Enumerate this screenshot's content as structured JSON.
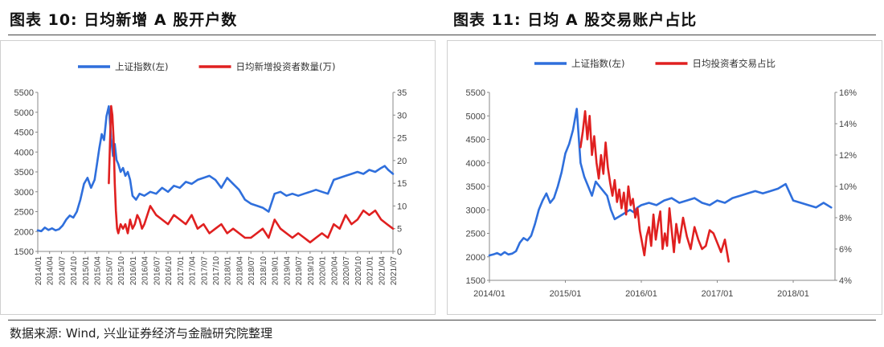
{
  "figures": {
    "left_title": "图表 10:  日均新增 A 股开户数",
    "right_title": "图表 11:  日均 A 股交易账户占比"
  },
  "source": "数据来源:  Wind, 兴业证券经济与金融研究院整理",
  "chart_data": [
    {
      "type": "line",
      "title": "图表 10:  日均新增 A 股开户数",
      "legend_position": "top",
      "grid": false,
      "x_ticks": [
        "2014/01",
        "2014/04",
        "2014/07",
        "2014/10",
        "2015/01",
        "2015/04",
        "2015/07",
        "2015/10",
        "2016/01",
        "2016/04",
        "2016/07",
        "2016/10",
        "2017/01",
        "2017/04",
        "2017/07",
        "2017/10",
        "2018/01",
        "2018/04",
        "2018/07",
        "2018/10",
        "2019/01",
        "2019/04",
        "2019/07",
        "2019/10",
        "2020/01",
        "2020/04",
        "2020/07",
        "2020/10",
        "2021/01",
        "2021/04",
        "2021/07"
      ],
      "ylim_left": [
        1500,
        5500
      ],
      "ylim_right": [
        0,
        35
      ],
      "y_ticks_left": [
        "1500",
        "2000",
        "2500",
        "3000",
        "3500",
        "4000",
        "4500",
        "5000",
        "5500"
      ],
      "y_ticks_right": [
        "0",
        "5",
        "10",
        "15",
        "20",
        "25",
        "30",
        "35"
      ],
      "series": [
        {
          "name": "上证指数(左)",
          "axis": "left",
          "color": "#2f6fdc",
          "x": [
            0,
            0.3,
            0.6,
            0.9,
            1.2,
            1.5,
            1.8,
            2.1,
            2.4,
            2.7,
            3.0,
            3.3,
            3.6,
            3.9,
            4.2,
            4.5,
            4.8,
            5.0,
            5.2,
            5.4,
            5.6,
            5.8,
            6.0,
            6.2,
            6.35,
            6.5,
            6.65,
            6.8,
            7.0,
            7.2,
            7.4,
            7.6,
            7.8,
            8.0,
            8.3,
            8.6,
            9.0,
            9.5,
            10,
            10.5,
            11,
            11.5,
            12,
            12.5,
            13,
            13.5,
            14,
            14.5,
            15,
            15.5,
            16,
            16.5,
            17,
            17.5,
            18,
            18.5,
            19,
            19.5,
            20,
            20.5,
            21,
            21.5,
            22,
            22.5,
            23,
            23.5,
            24,
            24.5,
            25,
            25.5,
            26,
            26.5,
            27,
            27.5,
            28,
            28.5,
            29,
            29.3,
            29.6,
            29.8,
            30
          ],
          "y": [
            2030,
            2010,
            2100,
            2040,
            2080,
            2030,
            2060,
            2150,
            2300,
            2400,
            2350,
            2500,
            2800,
            3200,
            3350,
            3100,
            3300,
            3700,
            4100,
            4450,
            4300,
            4900,
            5150,
            4350,
            3900,
            4200,
            3800,
            3700,
            3500,
            3600,
            3400,
            3500,
            3300,
            2900,
            2800,
            2950,
            2900,
            3000,
            2950,
            3100,
            3000,
            3150,
            3100,
            3250,
            3200,
            3300,
            3350,
            3400,
            3300,
            3100,
            3350,
            3200,
            3050,
            2800,
            2700,
            2650,
            2600,
            2500,
            2950,
            3000,
            2900,
            2950,
            2900,
            2950,
            3000,
            3050,
            3000,
            2950,
            3300,
            3350,
            3400,
            3450,
            3500,
            3450,
            3550,
            3500,
            3600,
            3650,
            3550,
            3500,
            3450
          ]
        },
        {
          "name": "日均新增投资者数量(万)",
          "axis": "right",
          "color": "#e02020",
          "x": [
            6.0,
            6.1,
            6.2,
            6.3,
            6.4,
            6.5,
            6.6,
            6.7,
            6.8,
            7.0,
            7.2,
            7.4,
            7.6,
            7.8,
            8.0,
            8.2,
            8.4,
            8.6,
            8.8,
            9.0,
            9.5,
            10,
            10.5,
            11,
            11.5,
            12,
            12.5,
            13,
            13.5,
            14,
            14.5,
            15,
            15.5,
            16,
            16.5,
            17,
            17.5,
            18,
            18.5,
            19,
            19.5,
            20,
            20.5,
            21,
            21.5,
            22,
            22.5,
            23,
            23.5,
            24,
            24.5,
            25,
            25.5,
            26,
            26.5,
            27,
            27.5,
            28,
            28.5,
            29,
            29.5,
            30
          ],
          "y": [
            15,
            24,
            32,
            30,
            25,
            15,
            9,
            5,
            4,
            6,
            5,
            6,
            4,
            7,
            5,
            6,
            8,
            7,
            5,
            6,
            10,
            8,
            7,
            6,
            8,
            7,
            6,
            8,
            5,
            6,
            4,
            5,
            6,
            4,
            5,
            4,
            3,
            3,
            4,
            5,
            3,
            7,
            5,
            4,
            3,
            4,
            3,
            2,
            3,
            4,
            3,
            6,
            5,
            8,
            6,
            7,
            9,
            8,
            9,
            7,
            6,
            5
          ]
        }
      ]
    },
    {
      "type": "line",
      "title": "图表 11:  日均 A 股交易账户占比",
      "legend_position": "top",
      "grid": false,
      "x_ticks": [
        "2014/01",
        "2015/01",
        "2016/01",
        "2017/01",
        "2018/01"
      ],
      "ylim_left": [
        1500,
        5500
      ],
      "ylim_right": [
        4,
        16
      ],
      "y_ticks_left": [
        "1500",
        "2000",
        "2500",
        "3000",
        "3500",
        "4000",
        "4500",
        "5000",
        "5500"
      ],
      "y_ticks_right": [
        "4%",
        "6%",
        "8%",
        "10%",
        "12%",
        "14%",
        "16%"
      ],
      "series": [
        {
          "name": "上证指数(左)",
          "axis": "left",
          "color": "#2f6fdc",
          "x": [
            0,
            0.05,
            0.1,
            0.15,
            0.2,
            0.25,
            0.3,
            0.35,
            0.4,
            0.45,
            0.5,
            0.55,
            0.6,
            0.65,
            0.7,
            0.75,
            0.8,
            0.85,
            0.9,
            0.95,
            1.0,
            1.05,
            1.1,
            1.15,
            1.2,
            1.25,
            1.3,
            1.35,
            1.4,
            1.45,
            1.5,
            1.55,
            1.6,
            1.65,
            1.7,
            1.75,
            1.8,
            1.85,
            1.9,
            1.95,
            2.0,
            2.1,
            2.2,
            2.3,
            2.4,
            2.5,
            2.6,
            2.7,
            2.8,
            2.9,
            3.0,
            3.1,
            3.2,
            3.3,
            3.4,
            3.5,
            3.6,
            3.7,
            3.8,
            3.9,
            4.0,
            4.1,
            4.2,
            4.3,
            4.4,
            4.5
          ],
          "y": [
            2030,
            2050,
            2080,
            2040,
            2100,
            2050,
            2070,
            2120,
            2300,
            2400,
            2350,
            2450,
            2700,
            3000,
            3200,
            3350,
            3150,
            3250,
            3500,
            3800,
            4200,
            4400,
            4700,
            5150,
            4000,
            3700,
            3500,
            3300,
            3600,
            3500,
            3400,
            3300,
            3000,
            2800,
            2850,
            2900,
            2950,
            3000,
            2950,
            3050,
            3100,
            3150,
            3100,
            3200,
            3250,
            3150,
            3200,
            3250,
            3150,
            3100,
            3200,
            3150,
            3250,
            3300,
            3350,
            3400,
            3350,
            3400,
            3450,
            3550,
            3200,
            3150,
            3100,
            3050,
            3150,
            3050
          ]
        },
        {
          "name": "日均投资者交易占比",
          "axis": "right",
          "color": "#e02020",
          "x": [
            1.2,
            1.23,
            1.26,
            1.29,
            1.32,
            1.35,
            1.38,
            1.41,
            1.44,
            1.47,
            1.5,
            1.53,
            1.56,
            1.59,
            1.62,
            1.65,
            1.68,
            1.71,
            1.74,
            1.77,
            1.8,
            1.83,
            1.86,
            1.89,
            1.92,
            1.95,
            1.98,
            2.01,
            2.04,
            2.07,
            2.1,
            2.13,
            2.16,
            2.19,
            2.22,
            2.25,
            2.28,
            2.31,
            2.34,
            2.37,
            2.4,
            2.43,
            2.46,
            2.5,
            2.55,
            2.6,
            2.65,
            2.7,
            2.75,
            2.8,
            2.85,
            2.9,
            2.95,
            3.0,
            3.05,
            3.1,
            3.15
          ],
          "y": [
            12.5,
            13.5,
            14.8,
            13.0,
            14.5,
            12.0,
            13.2,
            11.5,
            10.5,
            12.0,
            10.8,
            12.8,
            11.2,
            10.2,
            9.4,
            10.4,
            9.0,
            9.8,
            8.6,
            9.6,
            8.2,
            10.0,
            8.8,
            9.2,
            8.0,
            8.6,
            7.2,
            6.4,
            5.6,
            6.8,
            7.4,
            6.2,
            8.2,
            6.6,
            7.6,
            8.4,
            6.0,
            7.0,
            6.2,
            8.6,
            7.2,
            5.8,
            7.6,
            6.4,
            8.0,
            6.8,
            6.0,
            7.4,
            6.6,
            6.0,
            6.2,
            7.2,
            7.0,
            6.4,
            5.8,
            6.6,
            5.2
          ]
        }
      ]
    }
  ]
}
